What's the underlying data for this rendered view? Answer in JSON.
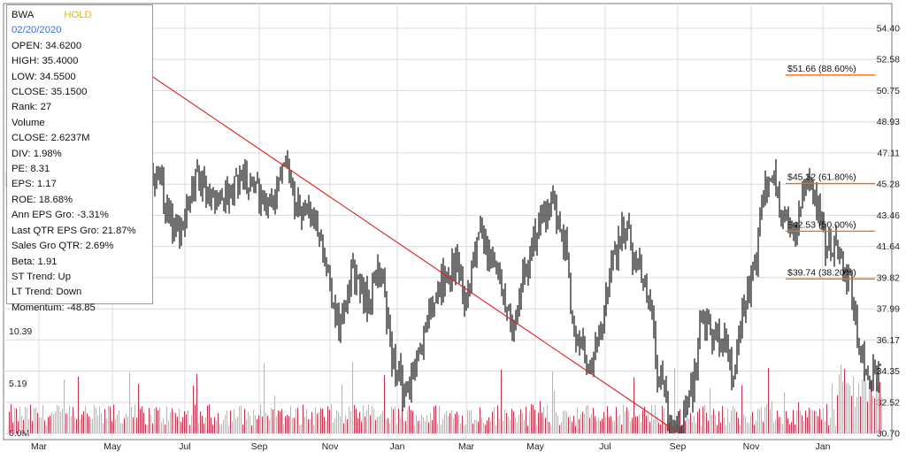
{
  "info": {
    "ticker": "BWA",
    "signal": "HOLD",
    "date": "02/20/2020",
    "rows": [
      "OPEN: 34.6200",
      "HIGH: 35.4000",
      "LOW: 34.5500",
      "CLOSE: 35.1500",
      "Rank: 27",
      "Volume",
      "CLOSE: 2.6237M",
      "DIV: 1.98%",
      "PE: 8.31",
      "EPS: 1.17",
      "ROE: 18.68%",
      "Ann EPS Gro: -3.31%",
      "Last QTR EPS Gro: 21.87%",
      "Sales Gro QTR: 2.69%",
      "Beta: 1.91",
      "ST Trend: Up",
      "LT Trend: Down",
      "Momentum: -48.85"
    ]
  },
  "colors": {
    "price": "#111111",
    "price_early": "#bdbdbd",
    "volume_up": "#b9b9b9",
    "volume_down": "#c4364f",
    "trendline": "#e02020",
    "fib": "#ff6a00",
    "grid": "#dcdcdc",
    "signal": "#e6b800",
    "date": "#3a6fd8"
  },
  "chart_data": {
    "type": "candlestick-line",
    "price_axis": {
      "ticks": [
        "54.40",
        "52.58",
        "50.75",
        "48.93",
        "47.11",
        "45.28",
        "43.46",
        "41.64",
        "39.82",
        "37.99",
        "36.17",
        "34.35",
        "32.52",
        "30.70"
      ],
      "range": [
        30.7,
        54.4
      ]
    },
    "volume_axis": {
      "ticks": [
        "0.0M",
        "5.19",
        "10.39"
      ],
      "range_millions": [
        0,
        20.78
      ]
    },
    "x_ticks": [
      "Mar",
      "May",
      "Jul",
      "Sep",
      "Nov",
      "Jan",
      "Mar",
      "May",
      "Jul",
      "Sep",
      "Nov",
      "Jan"
    ],
    "anchors": [
      {
        "t": 0,
        "p": 45.5
      },
      {
        "t": 1.2,
        "p": 49.0
      },
      {
        "t": 2.6,
        "p": 46.0
      },
      {
        "t": 3.5,
        "p": 52.0
      },
      {
        "t": 4.8,
        "p": 47.5
      },
      {
        "t": 5.8,
        "p": 51.5
      },
      {
        "t": 6.8,
        "p": 46.5
      },
      {
        "t": 7.8,
        "p": 53.0
      },
      {
        "t": 8.6,
        "p": 48.0
      },
      {
        "t": 9.5,
        "p": 51.5
      },
      {
        "t": 11.0,
        "p": 49.5
      },
      {
        "t": 12.5,
        "p": 45.5
      },
      {
        "t": 14.2,
        "p": 42.5
      },
      {
        "t": 16.0,
        "p": 45.5
      },
      {
        "t": 18.0,
        "p": 44.5
      },
      {
        "t": 20.0,
        "p": 45.5
      },
      {
        "t": 22.0,
        "p": 44.0
      },
      {
        "t": 23.2,
        "p": 47.0
      },
      {
        "t": 24.3,
        "p": 44.0
      },
      {
        "t": 26.0,
        "p": 42.5
      },
      {
        "t": 27.8,
        "p": 37.0
      },
      {
        "t": 29.0,
        "p": 40.0
      },
      {
        "t": 30.0,
        "p": 38.5
      },
      {
        "t": 31.0,
        "p": 40.0
      },
      {
        "t": 32.5,
        "p": 34.5
      },
      {
        "t": 33.3,
        "p": 32.8
      },
      {
        "t": 34.5,
        "p": 36.0
      },
      {
        "t": 36.0,
        "p": 39.5
      },
      {
        "t": 37.5,
        "p": 40.5
      },
      {
        "t": 38.3,
        "p": 38.5
      },
      {
        "t": 38.8,
        "p": 40.5
      },
      {
        "t": 39.5,
        "p": 42.0
      },
      {
        "t": 40.5,
        "p": 40.5
      },
      {
        "t": 41.5,
        "p": 38.5
      },
      {
        "t": 42.3,
        "p": 37.0
      },
      {
        "t": 43.0,
        "p": 40.0
      },
      {
        "t": 44.5,
        "p": 43.0
      },
      {
        "t": 45.5,
        "p": 44.0
      },
      {
        "t": 46.5,
        "p": 41.5
      },
      {
        "t": 47.2,
        "p": 37.0
      },
      {
        "t": 48.0,
        "p": 35.5
      },
      {
        "t": 48.5,
        "p": 34.5
      },
      {
        "t": 49.5,
        "p": 36.5
      },
      {
        "t": 50.5,
        "p": 41.0
      },
      {
        "t": 51.5,
        "p": 42.5
      },
      {
        "t": 52.5,
        "p": 40.5
      },
      {
        "t": 53.5,
        "p": 38.5
      },
      {
        "t": 54.2,
        "p": 34.5
      },
      {
        "t": 55.2,
        "p": 31.5
      },
      {
        "t": 56.0,
        "p": 31.0
      },
      {
        "t": 57.0,
        "p": 33.0
      },
      {
        "t": 58.0,
        "p": 37.5
      },
      {
        "t": 58.8,
        "p": 36.0
      },
      {
        "t": 59.5,
        "p": 36.5
      },
      {
        "t": 60.5,
        "p": 34.0
      },
      {
        "t": 61.5,
        "p": 38.5
      },
      {
        "t": 62.3,
        "p": 40.5
      },
      {
        "t": 63.0,
        "p": 45.0
      },
      {
        "t": 63.5,
        "p": 46.0
      },
      {
        "t": 64.5,
        "p": 44.0
      },
      {
        "t": 65.5,
        "p": 42.5
      },
      {
        "t": 66.5,
        "p": 45.0
      },
      {
        "t": 67.5,
        "p": 44.0
      },
      {
        "t": 68.3,
        "p": 41.5
      },
      {
        "t": 69.0,
        "p": 42.0
      },
      {
        "t": 70.0,
        "p": 40.0
      },
      {
        "t": 70.5,
        "p": 38.0
      },
      {
        "t": 71.0,
        "p": 35.0
      },
      {
        "t": 72.0,
        "p": 34.0
      },
      {
        "t": 73.0,
        "p": 34.5
      }
    ],
    "trendline": [
      {
        "t": 6.3,
        "p": 54.4
      },
      {
        "t": 56.0,
        "p": 30.7
      }
    ],
    "fib_levels": [
      {
        "label": "$51.66 (88.60%)",
        "value": 51.66
      },
      {
        "label": "$45.32 (61.80%)",
        "value": 45.32
      },
      {
        "label": "$42.53 (50.00%)",
        "value": 42.53
      },
      {
        "label": "$39.74 (38.20%)",
        "value": 39.74
      }
    ]
  }
}
